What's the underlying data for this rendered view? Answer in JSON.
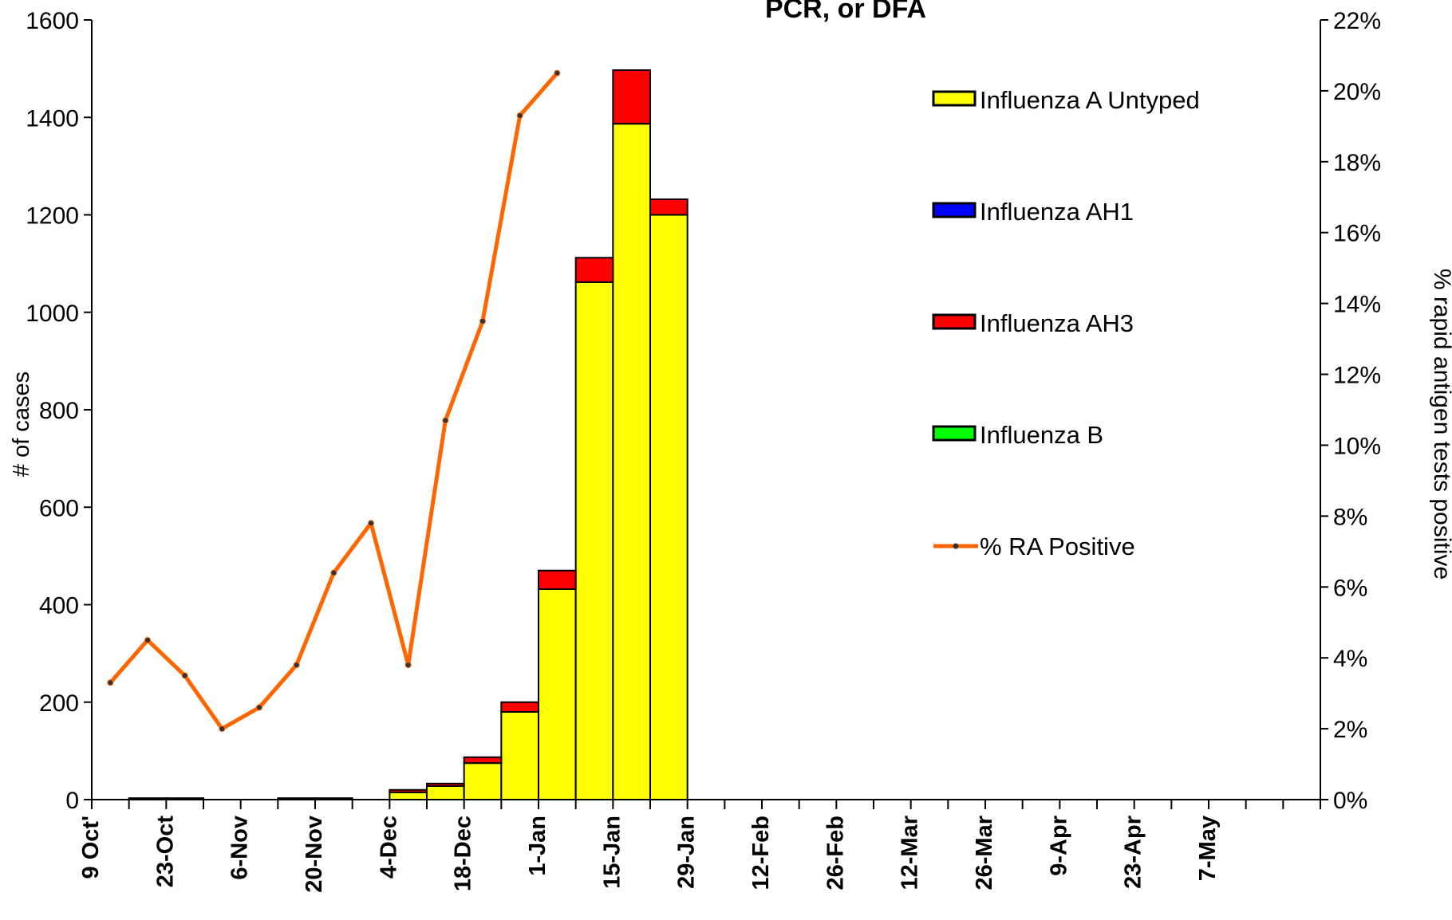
{
  "chart_data": {
    "type": "bar",
    "title": "PCR, or DFA",
    "ylabel": "# of cases",
    "y2label": "% rapid antigen tests positive",
    "ylim": [
      0,
      1600
    ],
    "y2lim": [
      0,
      22
    ],
    "y_ticks": [
      "0",
      "200",
      "400",
      "600",
      "800",
      "1000",
      "1200",
      "1400",
      "1600"
    ],
    "y2_ticks": [
      "0%",
      "2%",
      "4%",
      "6%",
      "8%",
      "10%",
      "12%",
      "14%",
      "16%",
      "18%",
      "20%",
      "22%"
    ],
    "x_tick_labels": [
      "9 Oct'",
      "23-Oct",
      "6-Nov",
      "20-Nov",
      "4-Dec",
      "18-Dec",
      "1-Jan",
      "15-Jan",
      "29-Jan",
      "12-Feb",
      "26-Feb",
      "12-Mar",
      "26-Mar",
      "9-Apr",
      "23-Apr",
      "7-May"
    ],
    "num_weeks": 33,
    "stacked": true,
    "series": [
      {
        "name": "Influenza A Untyped",
        "color": "#ffff00",
        "values": [
          0,
          3,
          3,
          0,
          0,
          3,
          3,
          0,
          15,
          28,
          75,
          180,
          432,
          1062,
          1387,
          1200,
          0,
          0,
          0,
          0,
          0,
          0,
          0,
          0,
          0,
          0,
          0,
          0,
          0,
          0,
          0,
          0,
          0
        ]
      },
      {
        "name": "Influenza AH1",
        "color": "#0000ff",
        "values": [
          0,
          0,
          0,
          0,
          0,
          0,
          0,
          0,
          0,
          0,
          0,
          0,
          0,
          0,
          0,
          0,
          0,
          0,
          0,
          0,
          0,
          0,
          0,
          0,
          0,
          0,
          0,
          0,
          0,
          0,
          0,
          0,
          0
        ]
      },
      {
        "name": "Influenza AH3",
        "color": "#ff0000",
        "values": [
          0,
          0,
          0,
          0,
          0,
          0,
          0,
          0,
          5,
          5,
          12,
          20,
          38,
          50,
          110,
          32,
          0,
          0,
          0,
          0,
          0,
          0,
          0,
          0,
          0,
          0,
          0,
          0,
          0,
          0,
          0,
          0,
          0
        ]
      },
      {
        "name": "Influenza B",
        "color": "#00ff00",
        "values": [
          0,
          0,
          0,
          0,
          0,
          0,
          0,
          0,
          0,
          0,
          0,
          0,
          0,
          0,
          0,
          0,
          0,
          0,
          0,
          0,
          0,
          0,
          0,
          0,
          0,
          0,
          0,
          0,
          0,
          0,
          0,
          0,
          0
        ]
      }
    ],
    "line_series": {
      "name": "% RA Positive",
      "color": "#ff6600",
      "axis": "right",
      "values": [
        3.3,
        4.5,
        3.5,
        2.0,
        2.6,
        3.8,
        6.4,
        7.8,
        3.8,
        10.7,
        13.5,
        19.3,
        20.5
      ]
    },
    "legend_position": "right"
  }
}
